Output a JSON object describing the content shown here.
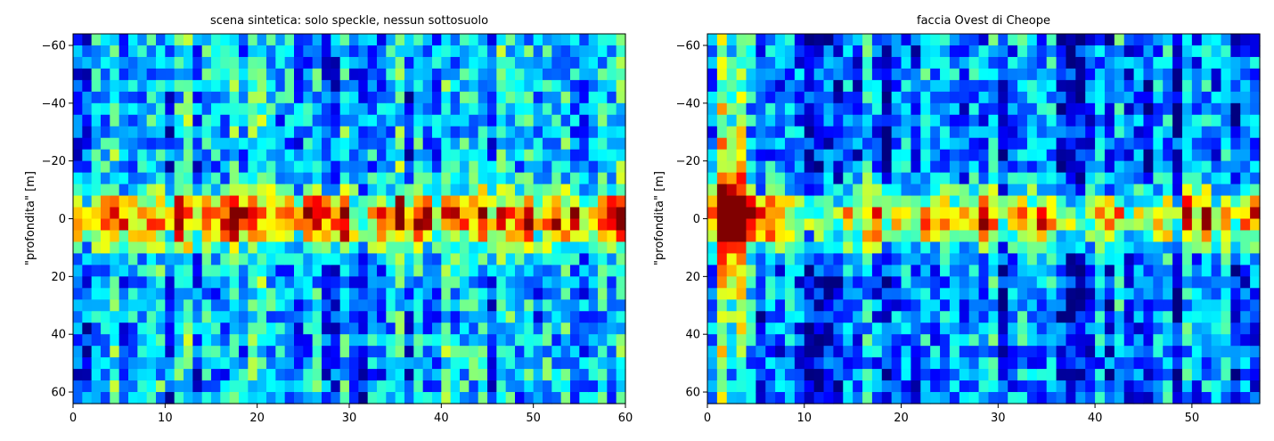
{
  "chart_data": [
    {
      "type": "heatmap",
      "title": "scena sintetica: solo speckle, nessun sottosuolo",
      "xlabel": "",
      "ylabel": "\"profondita\" [m]",
      "xlim": [
        0,
        60
      ],
      "ylim": [
        64,
        -64
      ],
      "xticks": [
        0,
        10,
        20,
        30,
        40,
        50,
        60
      ],
      "yticks": [
        -60,
        -40,
        -20,
        0,
        20,
        40,
        60
      ],
      "colormap": "jet",
      "grid": false,
      "grid_shape": {
        "columns": 60,
        "rows": 32
      },
      "band": {
        "center_depth": 0,
        "bright_columns": [
          0,
          3,
          5,
          11,
          16,
          17,
          18,
          25,
          26,
          27,
          28,
          29,
          33,
          35,
          36,
          37,
          38,
          41,
          44,
          49,
          52,
          54,
          58,
          59
        ]
      },
      "background_level": 0.3
    },
    {
      "type": "heatmap",
      "title": "faccia Ovest di Cheope",
      "xlabel": "",
      "ylabel": "\"profondita\" [m]",
      "xlim": [
        0,
        57
      ],
      "ylim": [
        64,
        -64
      ],
      "xticks": [
        0,
        10,
        20,
        30,
        40,
        50
      ],
      "yticks": [
        -60,
        -40,
        -20,
        0,
        20,
        40,
        60
      ],
      "colormap": "jet",
      "grid": false,
      "grid_shape": {
        "columns": 57,
        "rows": 32
      },
      "band": {
        "center_depth": 0,
        "bright_columns": [
          0,
          1,
          2,
          3,
          4,
          5,
          6,
          7,
          17,
          28,
          34,
          41,
          49,
          51,
          55,
          56
        ]
      },
      "bright_left_columns": [
        1,
        2,
        3
      ],
      "background_level": 0.22
    }
  ]
}
